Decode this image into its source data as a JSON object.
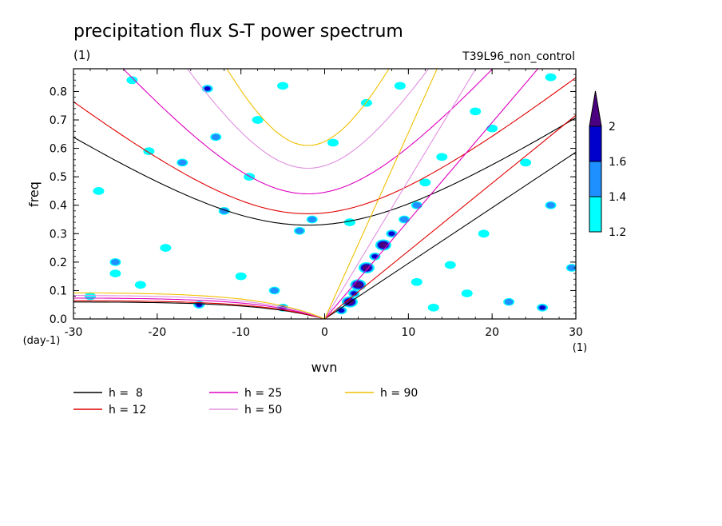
{
  "header": {
    "title": "precipitation flux S-T power spectrum",
    "units_label": "(1)",
    "run_label": "T39L96_non_control"
  },
  "chart_data": {
    "type": "heatmap",
    "title": "precipitation flux S-T power spectrum",
    "xlabel": "wvn",
    "ylabel": "freq",
    "x_unit": "(1)",
    "y_unit": "(day-1)",
    "xlim": [
      -30,
      30
    ],
    "ylim": [
      0,
      0.88
    ],
    "xticks": [
      -30,
      -20,
      -10,
      0,
      10,
      20,
      30
    ],
    "yticks": [
      0.0,
      0.1,
      0.2,
      0.3,
      0.4,
      0.5,
      0.6,
      0.7,
      0.8
    ],
    "ytick_labels": [
      "0.0",
      "0.1",
      "0.2",
      "0.3",
      "0.4",
      "0.5",
      "0.6",
      "0.7",
      "0.8"
    ],
    "colorbar": {
      "levels": [
        1.2,
        1.4,
        1.6,
        2
      ],
      "labels": [
        "1.2",
        "1.4",
        "1.6",
        "2"
      ],
      "colors": [
        "#00ffff",
        "#1e90ff",
        "#0000cd",
        "#4b0082"
      ]
    },
    "dispersion_curves": [
      {
        "name": "h =  8",
        "h": 8,
        "color": "#000000",
        "kelvin_speed": 0.77,
        "ig_min_freq": 0.33,
        "mrg_max_freq": 0.065
      },
      {
        "name": "h = 12",
        "h": 12,
        "color": "#e00000",
        "kelvin_speed": 0.94,
        "ig_min_freq": 0.37,
        "mrg_max_freq": 0.07
      },
      {
        "name": "h = 25",
        "h": 25,
        "color": "#e000c0",
        "kelvin_speed": 1.36,
        "ig_min_freq": 0.44,
        "mrg_max_freq": 0.08
      },
      {
        "name": "h = 50",
        "h": 50,
        "color": "#e090e0",
        "kelvin_speed": 1.92,
        "ig_min_freq": 0.53,
        "mrg_max_freq": 0.09
      },
      {
        "name": "h = 90",
        "h": 90,
        "color": "#f0c000",
        "kelvin_speed": 2.58,
        "ig_min_freq": 0.61,
        "mrg_max_freq": 0.1
      }
    ],
    "blobs": [
      {
        "x": 5.0,
        "y": 0.18,
        "level": 3
      },
      {
        "x": 4.0,
        "y": 0.12,
        "level": 3
      },
      {
        "x": 7.0,
        "y": 0.26,
        "level": 3
      },
      {
        "x": 3.0,
        "y": 0.06,
        "level": 3
      },
      {
        "x": 6.0,
        "y": 0.22,
        "level": 2
      },
      {
        "x": 8.0,
        "y": 0.3,
        "level": 2
      },
      {
        "x": 3.5,
        "y": 0.09,
        "level": 2
      },
      {
        "x": 9.5,
        "y": 0.35,
        "level": 1
      },
      {
        "x": 11.0,
        "y": 0.4,
        "level": 1
      },
      {
        "x": 2.0,
        "y": 0.03,
        "level": 2
      },
      {
        "x": 12.0,
        "y": 0.48,
        "level": 0
      },
      {
        "x": 14.0,
        "y": 0.57,
        "level": 0
      },
      {
        "x": -14.0,
        "y": 0.81,
        "level": 2
      },
      {
        "x": -17.0,
        "y": 0.55,
        "level": 1
      },
      {
        "x": -13.0,
        "y": 0.64,
        "level": 1
      },
      {
        "x": -15.0,
        "y": 0.05,
        "level": 2
      },
      {
        "x": -5.0,
        "y": 0.04,
        "level": 2
      },
      {
        "x": -6.0,
        "y": 0.1,
        "level": 1
      },
      {
        "x": -3.0,
        "y": 0.31,
        "level": 1
      },
      {
        "x": -1.5,
        "y": 0.35,
        "level": 1
      },
      {
        "x": -12.0,
        "y": 0.38,
        "level": 1
      },
      {
        "x": -25.0,
        "y": 0.2,
        "level": 1
      },
      {
        "x": -25.0,
        "y": 0.16,
        "level": 0
      },
      {
        "x": -27.0,
        "y": 0.45,
        "level": 0
      },
      {
        "x": -21.0,
        "y": 0.59,
        "level": 0
      },
      {
        "x": -9.0,
        "y": 0.5,
        "level": 0
      },
      {
        "x": 1.0,
        "y": 0.62,
        "level": 0
      },
      {
        "x": -8.0,
        "y": 0.7,
        "level": 0
      },
      {
        "x": 18.0,
        "y": 0.73,
        "level": 0
      },
      {
        "x": 20.0,
        "y": 0.67,
        "level": 0
      },
      {
        "x": 26.0,
        "y": 0.04,
        "level": 2
      },
      {
        "x": 22.0,
        "y": 0.06,
        "level": 1
      },
      {
        "x": 17.0,
        "y": 0.09,
        "level": 0
      },
      {
        "x": 13.0,
        "y": 0.04,
        "level": 0
      },
      {
        "x": 27.0,
        "y": 0.4,
        "level": 1
      },
      {
        "x": 29.5,
        "y": 0.18,
        "level": 1
      },
      {
        "x": 19.0,
        "y": 0.3,
        "level": 0
      },
      {
        "x": 24.0,
        "y": 0.55,
        "level": 0
      },
      {
        "x": -28.0,
        "y": 0.08,
        "level": 0
      },
      {
        "x": -19.0,
        "y": 0.25,
        "level": 0
      },
      {
        "x": -22.0,
        "y": 0.12,
        "level": 0
      },
      {
        "x": 3.0,
        "y": 0.34,
        "level": 0
      },
      {
        "x": 15.0,
        "y": 0.19,
        "level": 0
      },
      {
        "x": 11.0,
        "y": 0.13,
        "level": 0
      },
      {
        "x": -10.0,
        "y": 0.15,
        "level": 0
      },
      {
        "x": -5.0,
        "y": 0.82,
        "level": 0
      },
      {
        "x": 5.0,
        "y": 0.76,
        "level": 0
      },
      {
        "x": 9.0,
        "y": 0.82,
        "level": 0
      },
      {
        "x": -23.0,
        "y": 0.84,
        "level": 0
      },
      {
        "x": 27.0,
        "y": 0.85,
        "level": 0
      }
    ]
  }
}
